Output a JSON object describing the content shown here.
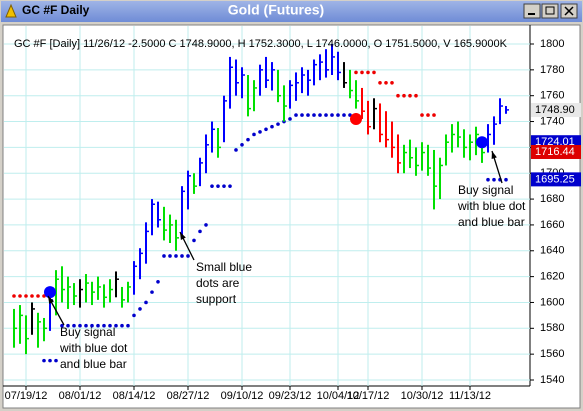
{
  "window": {
    "left_title": "GC #F Daily",
    "center_title": "Gold (Futures)"
  },
  "chart_data": {
    "type": "ohlc",
    "info": "GC #F [Daily] 11/26/12 -2.5000 C 1748.9000, H 1752.3000, L 1746.0000, O 1751.5000, V 165.9000K",
    "categories": [
      null,
      null,
      "07/19/12",
      null,
      null,
      null,
      null,
      null,
      null,
      null,
      null,
      "08/01/12",
      null,
      null,
      null,
      null,
      null,
      null,
      null,
      null,
      "08/14/12",
      null,
      null,
      null,
      null,
      null,
      null,
      null,
      null,
      "08/27/12",
      null,
      null,
      null,
      null,
      null,
      null,
      null,
      null,
      "09/10/12",
      null,
      null,
      null,
      null,
      null,
      null,
      null,
      "09/23/12",
      null,
      null,
      null,
      null,
      null,
      null,
      null,
      "10/04/12",
      null,
      null,
      null,
      null,
      "10/17/12",
      null,
      null,
      null,
      null,
      null,
      null,
      null,
      null,
      "10/30/12",
      null,
      null,
      null,
      null,
      null,
      null,
      null,
      "11/13/12",
      null,
      null,
      null,
      null,
      null,
      null
    ],
    "high": [
      1595,
      1598,
      1590,
      1600,
      1592,
      1588,
      1606,
      1625,
      1628,
      1620,
      1615,
      1618,
      1622,
      1616,
      1620,
      1614,
      1618,
      1624,
      1612,
      1616,
      1632,
      1642,
      1662,
      1680,
      1678,
      1674,
      1668,
      1664,
      1690,
      1702,
      1700,
      1712,
      1730,
      1740,
      1735,
      1760,
      1790,
      1788,
      1782,
      1776,
      1772,
      1784,
      1790,
      1786,
      1780,
      1768,
      1772,
      1778,
      1782,
      1780,
      1788,
      1792,
      1796,
      1800,
      1794,
      1786,
      1780,
      1772,
      1766,
      1756,
      1758,
      1754,
      1748,
      1740,
      1730,
      1722,
      1726,
      1720,
      1724,
      1722,
      1718,
      1712,
      1730,
      1738,
      1740,
      1734,
      1730,
      1736,
      1726,
      1738,
      1744,
      1758,
      1752
    ],
    "low": [
      1565,
      1568,
      1560,
      1575,
      1565,
      1570,
      1578,
      1590,
      1600,
      1595,
      1598,
      1596,
      1600,
      1598,
      1602,
      1596,
      1600,
      1604,
      1596,
      1600,
      1606,
      1618,
      1630,
      1652,
      1658,
      1648,
      1646,
      1640,
      1652,
      1672,
      1684,
      1690,
      1700,
      1716,
      1712,
      1724,
      1750,
      1760,
      1758,
      1744,
      1748,
      1760,
      1766,
      1764,
      1755,
      1740,
      1750,
      1756,
      1762,
      1760,
      1768,
      1772,
      1774,
      1776,
      1772,
      1766,
      1758,
      1750,
      1742,
      1730,
      1734,
      1724,
      1720,
      1712,
      1700,
      1700,
      1704,
      1698,
      1702,
      1698,
      1672,
      1680,
      1706,
      1716,
      1720,
      1712,
      1710,
      1714,
      1708,
      1716,
      1722,
      1738,
      1746
    ],
    "close": [
      1580,
      1590,
      1572,
      1595,
      1585,
      1580,
      1602,
      1618,
      1610,
      1612,
      1605,
      1610,
      1615,
      1608,
      1612,
      1604,
      1610,
      1618,
      1602,
      1612,
      1628,
      1638,
      1655,
      1676,
      1664,
      1656,
      1660,
      1650,
      1686,
      1698,
      1690,
      1708,
      1722,
      1734,
      1720,
      1756,
      1782,
      1770,
      1776,
      1750,
      1766,
      1780,
      1772,
      1780,
      1760,
      1752,
      1768,
      1770,
      1776,
      1772,
      1784,
      1786,
      1780,
      1790,
      1778,
      1770,
      1764,
      1756,
      1748,
      1736,
      1750,
      1730,
      1726,
      1720,
      1708,
      1716,
      1712,
      1706,
      1716,
      1704,
      1690,
      1706,
      1724,
      1730,
      1728,
      1720,
      1724,
      1730,
      1716,
      1730,
      1738,
      1752,
      1749
    ],
    "bar_colors": [
      "#00e000",
      "#00e000",
      "#00e000",
      "#000000",
      "#00e000",
      "#00e000",
      "#0000ff",
      "#00e000",
      "#00e000",
      "#00e000",
      "#00e000",
      "#000000",
      "#00e000",
      "#00e000",
      "#00e000",
      "#00e000",
      "#00e000",
      "#000000",
      "#00e000",
      "#00e000",
      "#0000ff",
      "#0000ff",
      "#0000ff",
      "#0000ff",
      "#0000ff",
      "#00e000",
      "#00e000",
      "#00e000",
      "#0000ff",
      "#0000ff",
      "#00e000",
      "#0000ff",
      "#0000ff",
      "#0000ff",
      "#00e000",
      "#0000ff",
      "#0000ff",
      "#0000ff",
      "#0000ff",
      "#00e000",
      "#00e000",
      "#0000ff",
      "#0000ff",
      "#0000ff",
      "#00e000",
      "#00e000",
      "#0000ff",
      "#0000ff",
      "#0000ff",
      "#0000ff",
      "#0000ff",
      "#0000ff",
      "#0000ff",
      "#0000ff",
      "#0000ff",
      "#000000",
      "#00e000",
      "#00e000",
      "#ff0000",
      "#ff0000",
      "#000000",
      "#ff0000",
      "#ff0000",
      "#ff0000",
      "#ff0000",
      "#00e000",
      "#00e000",
      "#00e000",
      "#00e000",
      "#00e000",
      "#00e000",
      "#00e000",
      "#00e000",
      "#00e000",
      "#00e000",
      "#00e000",
      "#00e000",
      "#00e000",
      "#00e000",
      "#0000ff",
      "#0000ff",
      "#0000ff",
      "#0000ff"
    ],
    "support": {
      "color": "#0000cc",
      "values": [
        null,
        null,
        null,
        null,
        null,
        1555,
        1555,
        1555,
        1582,
        1582,
        1582,
        1582,
        1582,
        1582,
        1582,
        1582,
        1582,
        1582,
        1582,
        1582,
        1590,
        1595,
        1600,
        1608,
        1616,
        1636,
        1636,
        1636,
        1636,
        1636,
        1648,
        1655,
        1660,
        1690,
        1690,
        1690,
        1690,
        1718,
        1722,
        1726,
        1730,
        1732,
        1734,
        1736,
        1738,
        1740,
        1742,
        1745,
        1745,
        1745,
        1745,
        1745,
        1745,
        1745,
        1745,
        1745,
        1745,
        1745,
        null,
        null,
        null,
        null,
        null,
        null,
        null,
        null,
        null,
        null,
        null,
        null,
        null,
        null,
        null,
        null,
        null,
        null,
        null,
        null,
        null,
        1695,
        1695,
        1695,
        1695
      ]
    },
    "resistance": {
      "color": "#ee0000",
      "values": [
        1605,
        1605,
        1605,
        1605,
        1605,
        1605,
        null,
        null,
        null,
        null,
        null,
        null,
        null,
        null,
        null,
        null,
        null,
        null,
        null,
        null,
        null,
        null,
        null,
        null,
        null,
        null,
        null,
        null,
        null,
        null,
        null,
        null,
        null,
        null,
        null,
        null,
        null,
        null,
        null,
        null,
        null,
        null,
        null,
        null,
        null,
        null,
        null,
        null,
        null,
        null,
        null,
        null,
        null,
        null,
        null,
        null,
        null,
        1778,
        1778,
        1778,
        1778,
        1770,
        1770,
        1770,
        1760,
        1760,
        1760,
        1760,
        1745,
        1745,
        1745,
        null,
        null,
        null,
        null,
        null,
        null,
        null,
        null,
        null,
        null,
        null,
        null
      ]
    },
    "signals": [
      {
        "index": 6,
        "value": 1608,
        "color": "#0000ff"
      },
      {
        "index": 57,
        "value": 1742,
        "color": "#ff0000"
      },
      {
        "index": 78,
        "value": 1724,
        "color": "#0000ff"
      }
    ],
    "price_labels": [
      {
        "value": 1748.9,
        "label": "1748.90",
        "color": "#e8e8e8",
        "text_color": "#000000"
      },
      {
        "value": 1724.01,
        "label": "1724.01",
        "color": "#0000cc",
        "text_color": "#ffffff"
      },
      {
        "value": 1716.44,
        "label": "1716.44",
        "color": "#dd0000",
        "text_color": "#ffffff"
      },
      {
        "value": 1695.25,
        "label": "1695.25",
        "color": "#0000cc",
        "text_color": "#ffffff"
      }
    ],
    "ylim": [
      1540,
      1800
    ],
    "yticks": [
      1540,
      1560,
      1580,
      1600,
      1620,
      1640,
      1660,
      1680,
      1700,
      1720,
      1740,
      1760,
      1780,
      1800
    ],
    "grid": true,
    "annotations": [
      {
        "lines": [
          "Buy signal",
          "with blue dot",
          "and blue bar"
        ]
      },
      {
        "lines": [
          "Small blue",
          "dots are",
          "support"
        ]
      },
      {
        "lines": [
          "Buy signal",
          "with blue dot",
          "and blue bar"
        ]
      }
    ]
  }
}
